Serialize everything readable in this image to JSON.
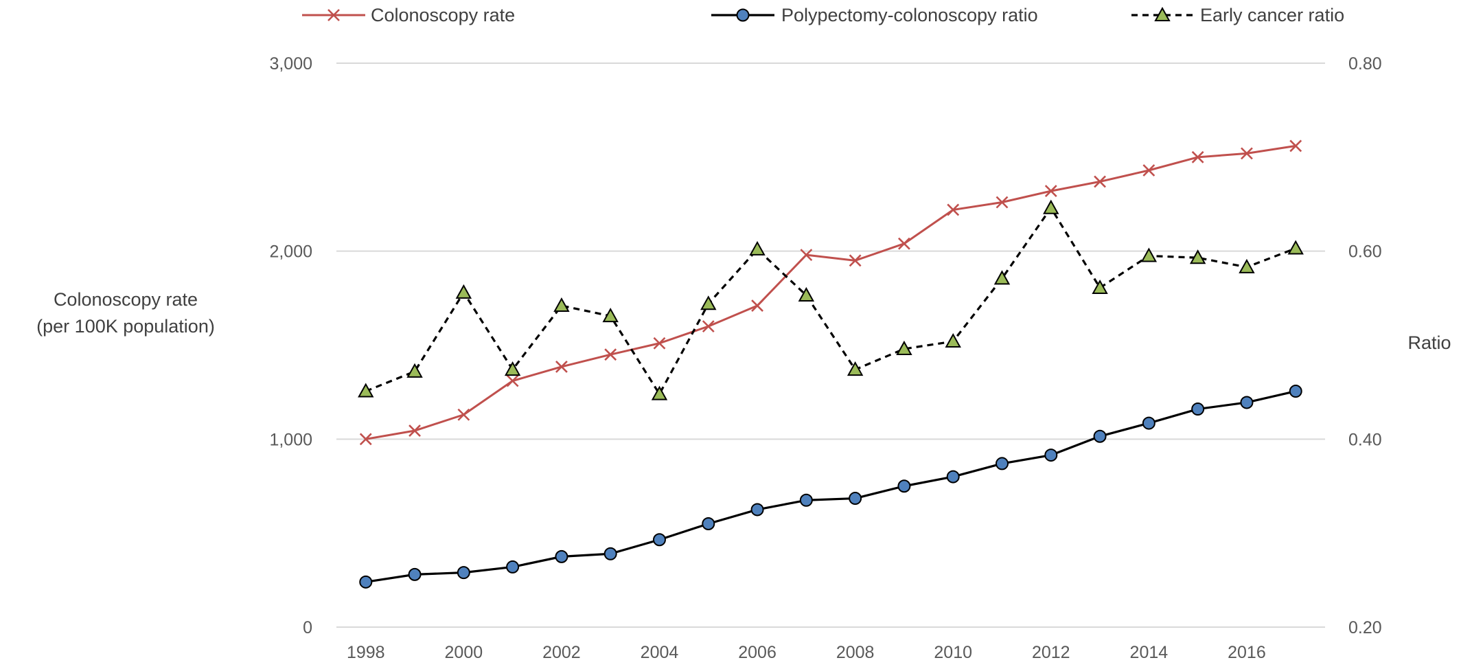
{
  "chart_data": {
    "type": "line",
    "x": [
      1998,
      1999,
      2000,
      2001,
      2002,
      2003,
      2004,
      2005,
      2006,
      2007,
      2008,
      2009,
      2010,
      2011,
      2012,
      2013,
      2014,
      2015,
      2016,
      2017
    ],
    "x_tick_labels": [
      "1998",
      "2000",
      "2002",
      "2004",
      "2006",
      "2008",
      "2010",
      "2012",
      "2014",
      "2016"
    ],
    "y_left": {
      "label_line1": "Colonoscopy rate",
      "label_line2": "(per 100K population)",
      "lim": [
        0,
        3000
      ],
      "ticks": [
        0,
        1000,
        2000,
        3000
      ],
      "tick_labels": [
        "0",
        "1,000",
        "2,000",
        "3,000"
      ]
    },
    "y_right": {
      "label": "Ratio",
      "lim": [
        0.2,
        0.8
      ],
      "ticks": [
        0.2,
        0.4,
        0.6,
        0.8
      ],
      "tick_labels": [
        "0.20",
        "0.40",
        "0.60",
        "0.80"
      ]
    },
    "grid": true,
    "legend_position": "top",
    "series": [
      {
        "name": "Colonoscopy rate",
        "axis": "left",
        "marker": "x",
        "line_style": "solid",
        "color": "#c0504d",
        "values": [
          1000,
          1045,
          1130,
          1310,
          1385,
          1450,
          1510,
          1600,
          1710,
          1980,
          1950,
          2040,
          2220,
          2260,
          2320,
          2370,
          2430,
          2500,
          2520,
          2560
        ]
      },
      {
        "name": "Polypectomy-colonoscopy ratio",
        "axis": "right",
        "marker": "circle",
        "line_style": "solid",
        "color": "#000000",
        "marker_color": "#4f81bd",
        "values": [
          0.248,
          0.256,
          0.258,
          0.264,
          0.275,
          0.278,
          0.293,
          0.31,
          0.325,
          0.335,
          0.337,
          0.35,
          0.36,
          0.374,
          0.383,
          0.403,
          0.417,
          0.432,
          0.439,
          0.451
        ]
      },
      {
        "name": "Early cancer ratio",
        "axis": "right",
        "marker": "triangle",
        "line_style": "dashed",
        "color": "#000000",
        "marker_color": "#9bbb59",
        "values": [
          0.451,
          0.472,
          0.556,
          0.474,
          0.542,
          0.531,
          0.448,
          0.544,
          0.602,
          0.553,
          0.474,
          0.496,
          0.504,
          0.571,
          0.646,
          0.561,
          0.595,
          0.593,
          0.583,
          0.603
        ]
      }
    ]
  }
}
